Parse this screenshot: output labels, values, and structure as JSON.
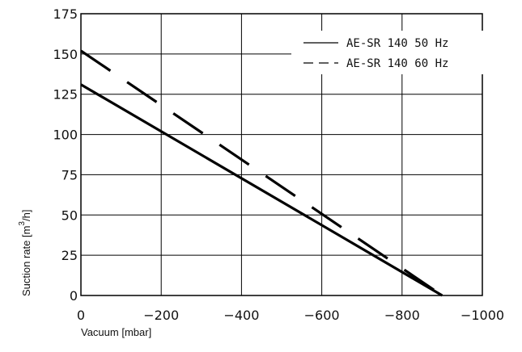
{
  "chart_data": {
    "type": "line",
    "xlabel": "Vacuum [mbar]",
    "ylabel": "Suction rate [m",
    "ylabel_sup": "3",
    "ylabel_end": "/h]",
    "xlim": [
      0,
      -1000
    ],
    "ylim": [
      0,
      175
    ],
    "x_ticks": [
      0,
      -200,
      -400,
      -600,
      -800,
      -1000
    ],
    "x_tick_labels": [
      "0",
      "−200",
      "−400",
      "−600",
      "−800",
      "−1000"
    ],
    "y_ticks": [
      0,
      25,
      50,
      75,
      100,
      125,
      150,
      175
    ],
    "y_tick_labels": [
      "0",
      "25",
      "50",
      "75",
      "100",
      "125",
      "150",
      "175"
    ],
    "grid": true,
    "legend_position": "top-right",
    "series": [
      {
        "name": "AE-SR 140 50 Hz",
        "style": "solid",
        "x": [
          0,
          -900
        ],
        "y": [
          131,
          0
        ]
      },
      {
        "name": "AE-SR 140 60 Hz",
        "style": "dashed",
        "x": [
          0,
          -900
        ],
        "y": [
          152,
          0
        ]
      }
    ]
  }
}
